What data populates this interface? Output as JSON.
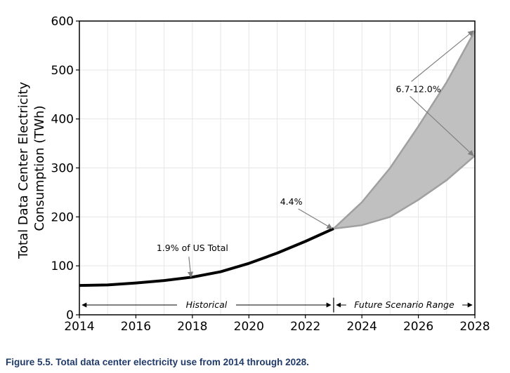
{
  "caption": "Figure 5.5.  Total data center electricity use from 2014 through 2028.",
  "chart_data": {
    "type": "line",
    "title": "",
    "xlabel": "",
    "ylabel": "Total Data Center Electricity Consumption (TWh)",
    "ylabel_lines": [
      "Total Data Center Electricity",
      "Consumption (TWh)"
    ],
    "xlim": [
      2014,
      2028
    ],
    "ylim": [
      0,
      600
    ],
    "x_ticks": [
      2014,
      2016,
      2018,
      2020,
      2022,
      2024,
      2026,
      2028
    ],
    "y_ticks": [
      0,
      100,
      200,
      300,
      400,
      500,
      600
    ],
    "grid": true,
    "series": [
      {
        "name": "Historical",
        "x": [
          2014,
          2015,
          2016,
          2017,
          2018,
          2019,
          2020,
          2021,
          2022,
          2023
        ],
        "values": [
          60,
          61,
          65,
          70,
          77,
          88,
          105,
          126,
          150,
          176
        ],
        "color": "#000000"
      },
      {
        "name": "Future Scenario Range (upper)",
        "x": [
          2023,
          2024,
          2025,
          2026,
          2027,
          2028
        ],
        "values": [
          176,
          230,
          300,
          385,
          475,
          580
        ],
        "color": "#a0a0a0"
      },
      {
        "name": "Future Scenario Range (lower)",
        "x": [
          2023,
          2024,
          2025,
          2026,
          2027,
          2028
        ],
        "values": [
          176,
          183,
          200,
          235,
          275,
          325
        ],
        "color": "#a0a0a0"
      }
    ],
    "fill_color": "#c0c0c0",
    "annotations": [
      {
        "text": "1.9% of US Total",
        "x": 2018,
        "y": 77,
        "text_x": 2018,
        "text_y": 130
      },
      {
        "text": "4.4%",
        "x": 2023,
        "y": 176,
        "text_x": 2021.5,
        "text_y": 225
      },
      {
        "text": "6.7-12.0%",
        "x": [
          2028,
          2028
        ],
        "y": [
          580,
          325
        ],
        "text_x": 2026,
        "text_y": 455
      }
    ],
    "periods": [
      {
        "label": "Historical",
        "start": 2014,
        "end": 2023,
        "y": 20
      },
      {
        "label": "Future Scenario Range",
        "start": 2023,
        "end": 2028,
        "y": 20
      }
    ]
  }
}
